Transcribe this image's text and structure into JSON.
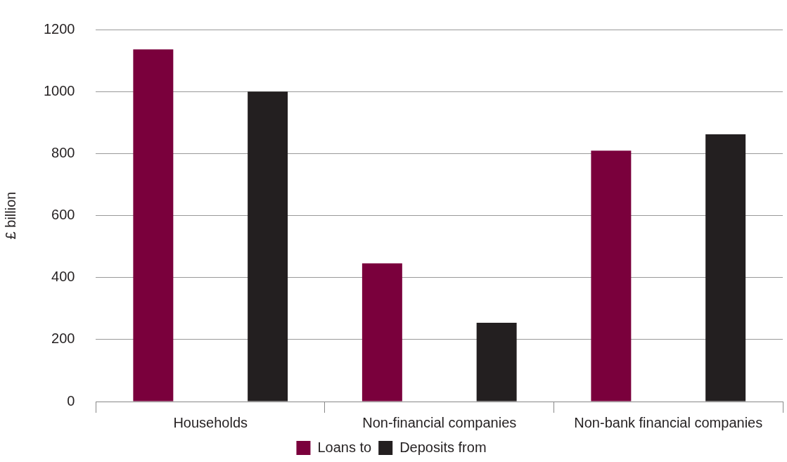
{
  "chart_data": {
    "type": "bar",
    "ylabel": "£ billion",
    "categories": [
      "Households",
      "Non-financial companies",
      "Non-bank financial companies"
    ],
    "series": [
      {
        "name": "Loans to",
        "color": "#7a003c",
        "values": [
          1136,
          446,
          809
        ]
      },
      {
        "name": "Deposits from",
        "color": "#231f20",
        "values": [
          1000,
          254,
          862
        ]
      }
    ],
    "ylim": [
      0,
      1200
    ],
    "yticks": [
      0,
      200,
      400,
      600,
      800,
      1000,
      1200
    ],
    "grid": "y",
    "legend": "bottom"
  }
}
